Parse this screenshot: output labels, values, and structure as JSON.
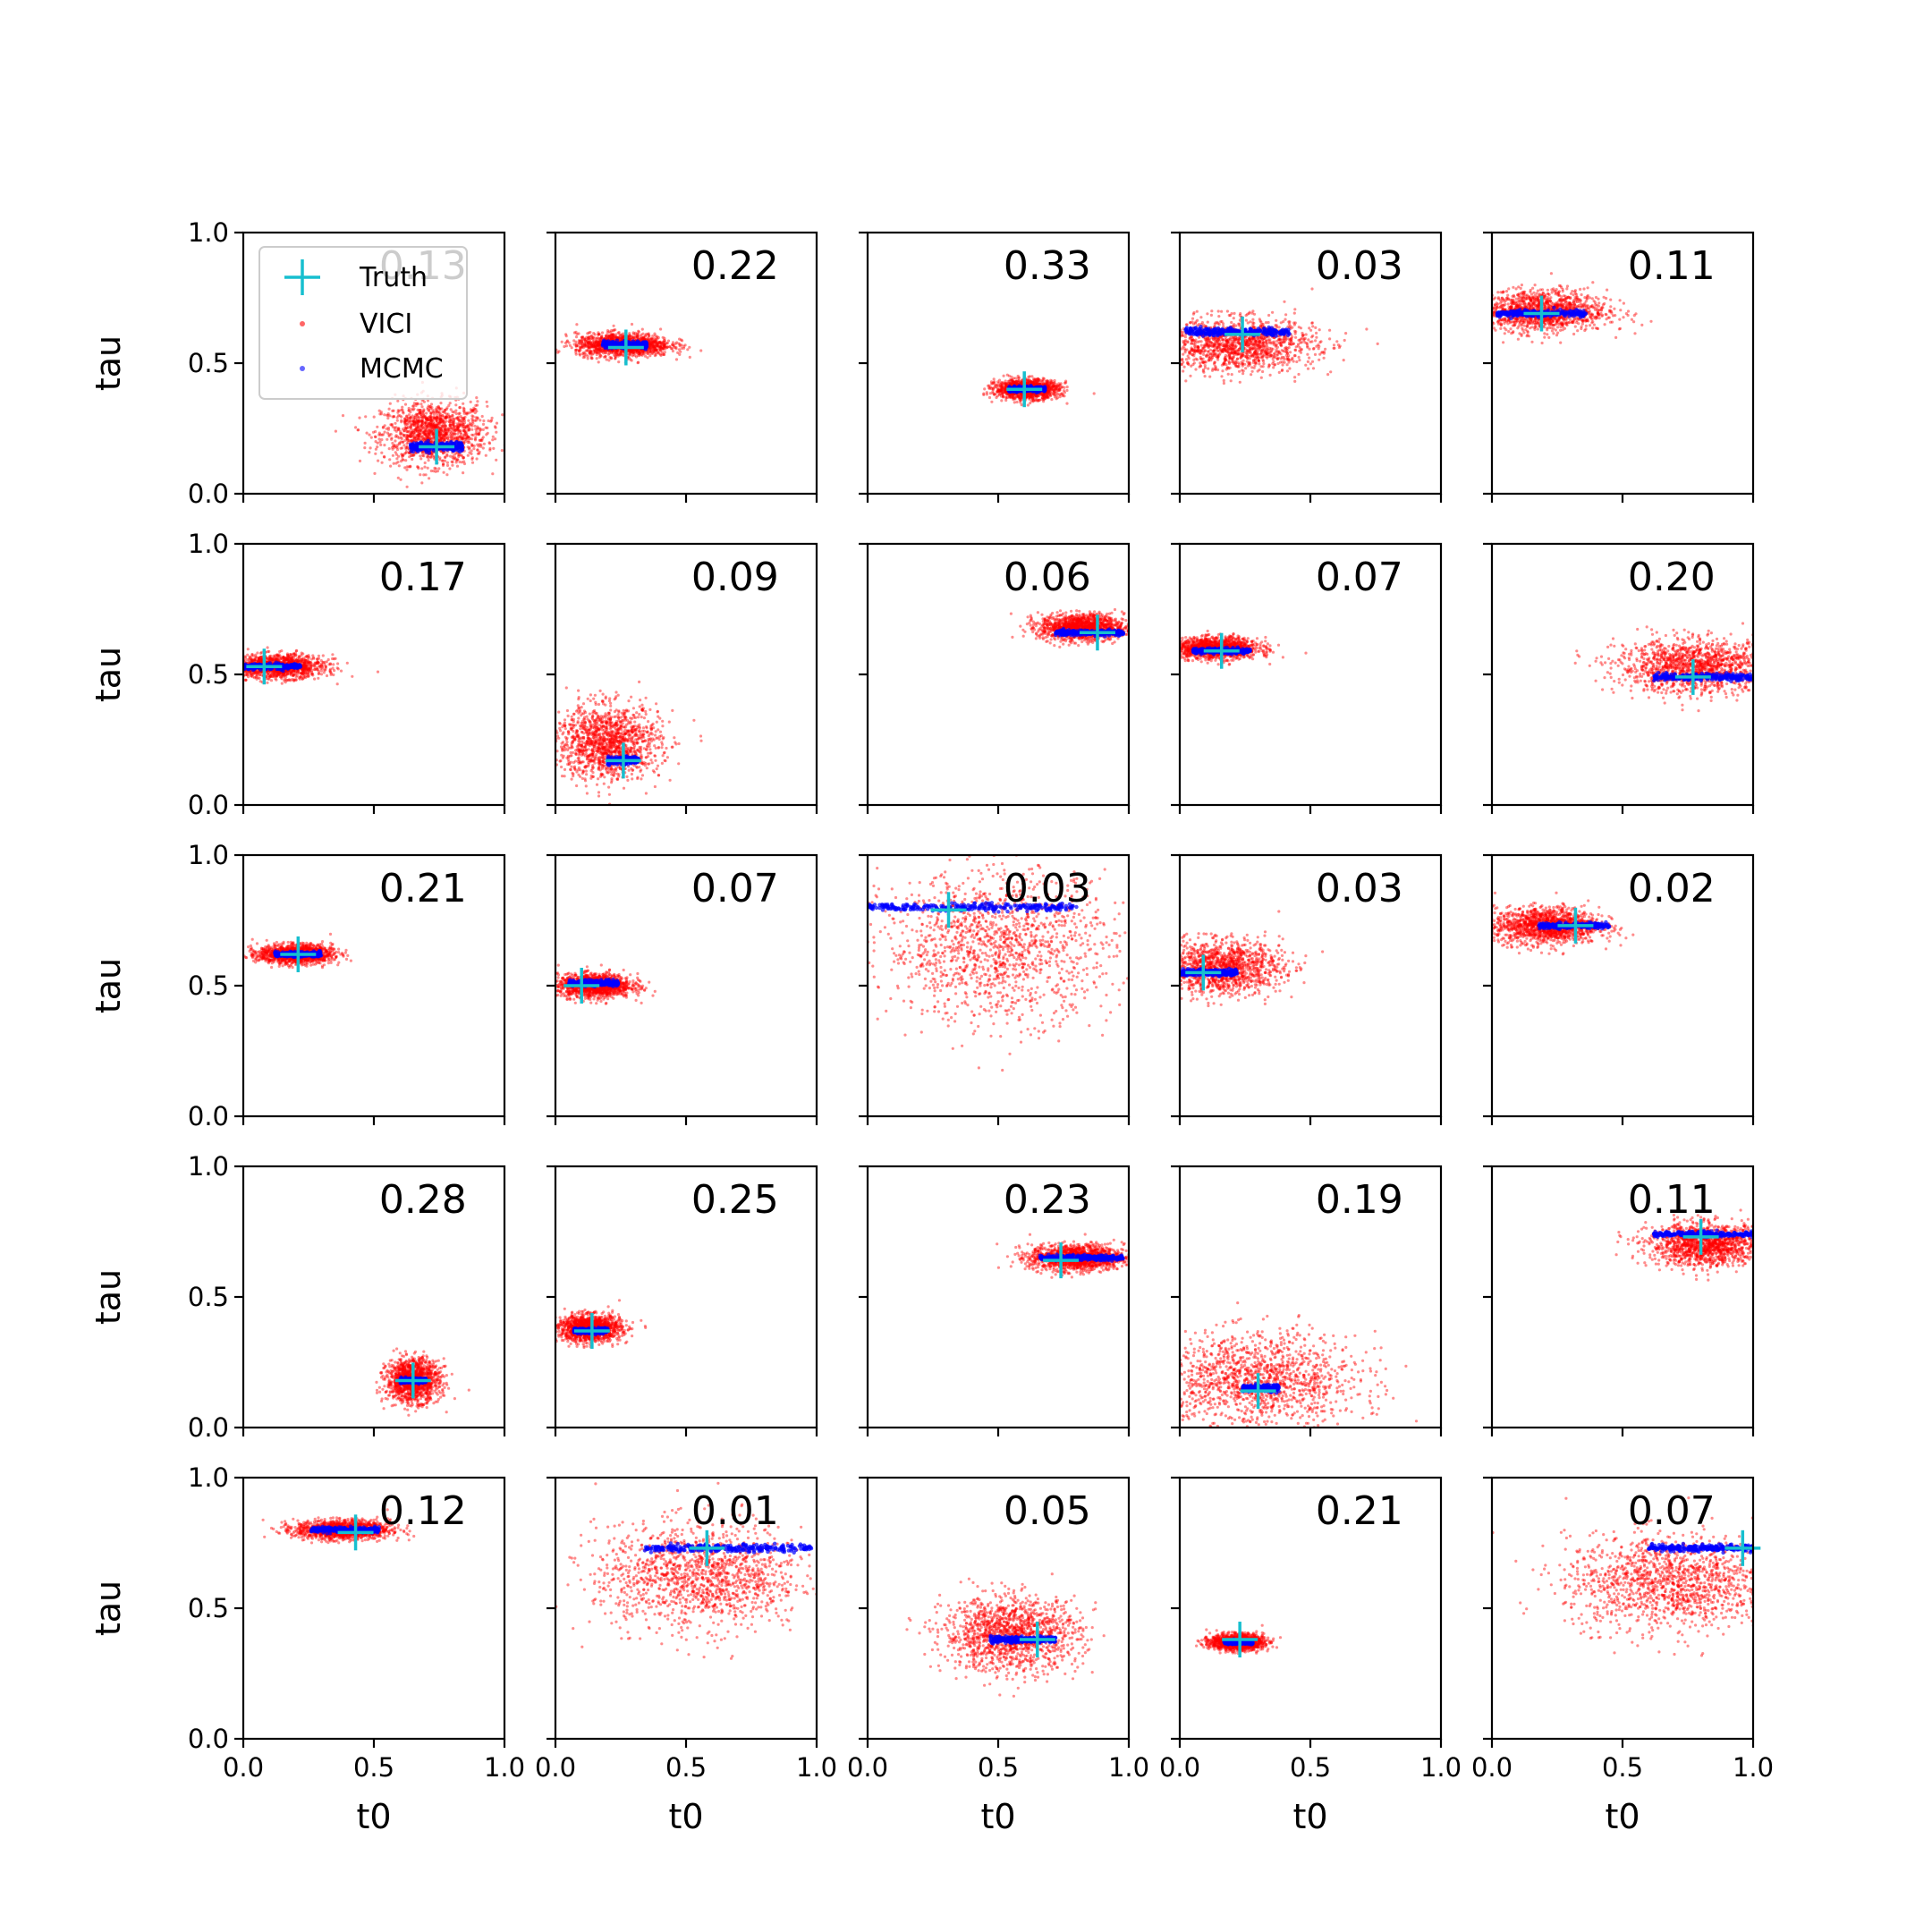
{
  "chart_data": {
    "type": "scatter",
    "grid": {
      "rows": 5,
      "cols": 5
    },
    "xlabel": "t0",
    "ylabel": "tau",
    "xlim": [
      0.0,
      1.0
    ],
    "ylim": [
      0.0,
      1.0
    ],
    "x_ticks": [
      "0.0",
      "0.5",
      "1.0"
    ],
    "y_ticks": [
      "0.0",
      "0.5",
      "1.0"
    ],
    "grid_lines": false,
    "legend": {
      "placement": "top-left of first panel",
      "entries": [
        {
          "name": "Truth",
          "marker": "plus",
          "color": "#17bfcf"
        },
        {
          "name": "VICI",
          "marker": "dot",
          "color": "#ff0000"
        },
        {
          "name": "MCMC",
          "marker": "dot",
          "color": "#0000ff"
        }
      ]
    },
    "colors": {
      "vici": "#ff0000",
      "mcmc": "#0000ff",
      "truth": "#17bfcf"
    },
    "panels": [
      {
        "score": "0.13",
        "truth": [
          0.74,
          0.18
        ],
        "vici": {
          "cx": 0.73,
          "cy": 0.23,
          "sx": 0.1,
          "sy": 0.06
        },
        "mcmc": {
          "x0": 0.64,
          "x1": 0.84,
          "y": 0.18,
          "spread": 0.008
        }
      },
      {
        "score": "0.22",
        "truth": [
          0.27,
          0.56
        ],
        "vici": {
          "cx": 0.26,
          "cy": 0.57,
          "sx": 0.09,
          "sy": 0.022
        },
        "mcmc": {
          "x0": 0.18,
          "x1": 0.35,
          "y": 0.57,
          "spread": 0.006
        }
      },
      {
        "score": "0.33",
        "truth": [
          0.6,
          0.4
        ],
        "vici": {
          "cx": 0.61,
          "cy": 0.4,
          "sx": 0.06,
          "sy": 0.018
        },
        "mcmc": {
          "x0": 0.54,
          "x1": 0.68,
          "y": 0.4,
          "spread": 0.005
        }
      },
      {
        "score": "0.03",
        "truth": [
          0.24,
          0.61
        ],
        "vici": {
          "cx": 0.22,
          "cy": 0.57,
          "sx": 0.15,
          "sy": 0.05
        },
        "mcmc": {
          "x0": 0.02,
          "x1": 0.42,
          "y": 0.62,
          "spread": 0.007
        }
      },
      {
        "score": "0.11",
        "truth": [
          0.19,
          0.69
        ],
        "vici": {
          "cx": 0.18,
          "cy": 0.7,
          "sx": 0.13,
          "sy": 0.04
        },
        "mcmc": {
          "x0": 0.02,
          "x1": 0.36,
          "y": 0.69,
          "spread": 0.006
        }
      },
      {
        "score": "0.17",
        "truth": [
          0.08,
          0.53
        ],
        "vici": {
          "cx": 0.13,
          "cy": 0.53,
          "sx": 0.09,
          "sy": 0.022
        },
        "mcmc": {
          "x0": 0.0,
          "x1": 0.22,
          "y": 0.53,
          "spread": 0.005
        }
      },
      {
        "score": "0.09",
        "truth": [
          0.26,
          0.17
        ],
        "vici": {
          "cx": 0.2,
          "cy": 0.24,
          "sx": 0.1,
          "sy": 0.07
        },
        "mcmc": {
          "x0": 0.2,
          "x1": 0.32,
          "y": 0.17,
          "spread": 0.006
        }
      },
      {
        "score": "0.06",
        "truth": [
          0.88,
          0.66
        ],
        "vici": {
          "cx": 0.82,
          "cy": 0.68,
          "sx": 0.08,
          "sy": 0.025
        },
        "mcmc": {
          "x0": 0.72,
          "x1": 0.98,
          "y": 0.66,
          "spread": 0.005
        }
      },
      {
        "score": "0.07",
        "truth": [
          0.16,
          0.59
        ],
        "vici": {
          "cx": 0.14,
          "cy": 0.6,
          "sx": 0.08,
          "sy": 0.02
        },
        "mcmc": {
          "x0": 0.05,
          "x1": 0.27,
          "y": 0.59,
          "spread": 0.005
        }
      },
      {
        "score": "0.20",
        "truth": [
          0.77,
          0.49
        ],
        "vici": {
          "cx": 0.78,
          "cy": 0.53,
          "sx": 0.15,
          "sy": 0.05
        },
        "mcmc": {
          "x0": 0.62,
          "x1": 1.0,
          "y": 0.49,
          "spread": 0.006
        }
      },
      {
        "score": "0.21",
        "truth": [
          0.21,
          0.62
        ],
        "vici": {
          "cx": 0.2,
          "cy": 0.62,
          "sx": 0.07,
          "sy": 0.018
        },
        "mcmc": {
          "x0": 0.12,
          "x1": 0.3,
          "y": 0.62,
          "spread": 0.005
        }
      },
      {
        "score": "0.07",
        "truth": [
          0.1,
          0.5
        ],
        "vici": {
          "cx": 0.15,
          "cy": 0.5,
          "sx": 0.07,
          "sy": 0.022
        },
        "mcmc": {
          "x0": 0.05,
          "x1": 0.24,
          "y": 0.51,
          "spread": 0.005
        }
      },
      {
        "score": "0.03",
        "truth": [
          0.31,
          0.79
        ],
        "vici": {
          "cx": 0.5,
          "cy": 0.65,
          "sx": 0.22,
          "sy": 0.14
        },
        "mcmc": {
          "x0": 0.0,
          "x1": 0.8,
          "y": 0.8,
          "spread": 0.007
        }
      },
      {
        "score": "0.03",
        "truth": [
          0.09,
          0.55
        ],
        "vici": {
          "cx": 0.15,
          "cy": 0.57,
          "sx": 0.12,
          "sy": 0.05
        },
        "mcmc": {
          "x0": 0.0,
          "x1": 0.22,
          "y": 0.55,
          "spread": 0.006
        }
      },
      {
        "score": "0.02",
        "truth": [
          0.32,
          0.73
        ],
        "vici": {
          "cx": 0.21,
          "cy": 0.73,
          "sx": 0.1,
          "sy": 0.035
        },
        "mcmc": {
          "x0": 0.18,
          "x1": 0.45,
          "y": 0.73,
          "spread": 0.005
        }
      },
      {
        "score": "0.28",
        "truth": [
          0.65,
          0.18
        ],
        "vici": {
          "cx": 0.65,
          "cy": 0.18,
          "sx": 0.05,
          "sy": 0.04
        },
        "mcmc": {
          "x0": 0.6,
          "x1": 0.7,
          "y": 0.18,
          "spread": 0.005
        }
      },
      {
        "score": "0.25",
        "truth": [
          0.14,
          0.37
        ],
        "vici": {
          "cx": 0.13,
          "cy": 0.38,
          "sx": 0.06,
          "sy": 0.025
        },
        "mcmc": {
          "x0": 0.07,
          "x1": 0.2,
          "y": 0.37,
          "spread": 0.005
        }
      },
      {
        "score": "0.23",
        "truth": [
          0.74,
          0.64
        ],
        "vici": {
          "cx": 0.8,
          "cy": 0.65,
          "sx": 0.09,
          "sy": 0.025
        },
        "mcmc": {
          "x0": 0.66,
          "x1": 0.98,
          "y": 0.65,
          "spread": 0.005
        }
      },
      {
        "score": "0.19",
        "truth": [
          0.3,
          0.14
        ],
        "vici": {
          "cx": 0.3,
          "cy": 0.18,
          "sx": 0.19,
          "sy": 0.09
        },
        "mcmc": {
          "x0": 0.24,
          "x1": 0.38,
          "y": 0.15,
          "spread": 0.006
        }
      },
      {
        "score": "0.11",
        "truth": [
          0.8,
          0.73
        ],
        "vici": {
          "cx": 0.82,
          "cy": 0.7,
          "sx": 0.11,
          "sy": 0.04
        },
        "mcmc": {
          "x0": 0.62,
          "x1": 1.0,
          "y": 0.74,
          "spread": 0.005
        }
      },
      {
        "score": "0.12",
        "truth": [
          0.43,
          0.79
        ],
        "vici": {
          "cx": 0.38,
          "cy": 0.8,
          "sx": 0.09,
          "sy": 0.018
        },
        "mcmc": {
          "x0": 0.26,
          "x1": 0.52,
          "y": 0.8,
          "spread": 0.005
        }
      },
      {
        "score": "0.01",
        "truth": [
          0.58,
          0.73
        ],
        "vici": {
          "cx": 0.55,
          "cy": 0.62,
          "sx": 0.2,
          "sy": 0.1
        },
        "mcmc": {
          "x0": 0.33,
          "x1": 0.98,
          "y": 0.73,
          "spread": 0.007
        }
      },
      {
        "score": "0.05",
        "truth": [
          0.65,
          0.38
        ],
        "vici": {
          "cx": 0.55,
          "cy": 0.4,
          "sx": 0.13,
          "sy": 0.07
        },
        "mcmc": {
          "x0": 0.47,
          "x1": 0.72,
          "y": 0.38,
          "spread": 0.006
        }
      },
      {
        "score": "0.21",
        "truth": [
          0.23,
          0.38
        ],
        "vici": {
          "cx": 0.22,
          "cy": 0.37,
          "sx": 0.05,
          "sy": 0.015
        },
        "mcmc": {
          "x0": 0.17,
          "x1": 0.28,
          "y": 0.37,
          "spread": 0.004
        }
      },
      {
        "score": "0.07",
        "truth": [
          0.96,
          0.73
        ],
        "vici": {
          "cx": 0.68,
          "cy": 0.6,
          "sx": 0.2,
          "sy": 0.09
        },
        "mcmc": {
          "x0": 0.6,
          "x1": 1.0,
          "y": 0.73,
          "spread": 0.006
        }
      }
    ]
  }
}
